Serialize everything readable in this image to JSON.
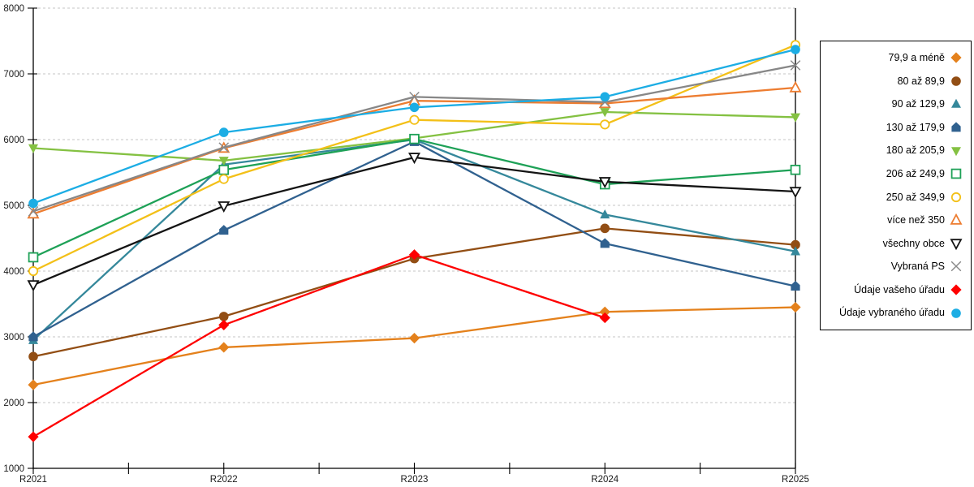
{
  "chart_data": {
    "type": "line",
    "title": "",
    "xlabel": "",
    "ylabel": "",
    "categories": [
      "R2021",
      "R2022",
      "R2023",
      "R2024",
      "R2025"
    ],
    "y_ticks": [
      "1000",
      "2000",
      "3000",
      "4000",
      "5000",
      "6000",
      "7000",
      "8000"
    ],
    "ylim": [
      1000,
      8000
    ],
    "grid": "horizontal-dashed",
    "legend_position": "right",
    "series": [
      {
        "name": "79,9 a méně",
        "color": "#E4811C",
        "marker": "diamond",
        "fill": "filled",
        "values": [
          2270,
          2840,
          2980,
          3380,
          3450
        ]
      },
      {
        "name": "80 až 89,9",
        "color": "#924E14",
        "marker": "circle",
        "fill": "filled",
        "values": [
          2700,
          3310,
          4190,
          4650,
          4400
        ]
      },
      {
        "name": "90 až 129,9",
        "color": "#35889B",
        "marker": "triangle-up",
        "fill": "filled",
        "values": [
          2950,
          5620,
          6000,
          4860,
          4300
        ]
      },
      {
        "name": "130 až 179,9",
        "color": "#30618F",
        "marker": "pentagon",
        "fill": "filled",
        "values": [
          3000,
          4620,
          5970,
          4420,
          3770
        ]
      },
      {
        "name": "180 až 205,9",
        "color": "#84C142",
        "marker": "triangle-down",
        "fill": "filled",
        "values": [
          5870,
          5680,
          6020,
          6420,
          6340
        ]
      },
      {
        "name": "206 až 249,9",
        "color": "#1EA157",
        "marker": "square",
        "fill": "open",
        "values": [
          4210,
          5540,
          6010,
          5320,
          5540
        ]
      },
      {
        "name": "250 až 349,9",
        "color": "#F3C018",
        "marker": "circle",
        "fill": "open",
        "values": [
          4000,
          5400,
          6300,
          6230,
          7440
        ]
      },
      {
        "name": "více než 350",
        "color": "#ED7D31",
        "marker": "triangle-up",
        "fill": "open",
        "values": [
          4870,
          5870,
          6590,
          6550,
          6790
        ]
      },
      {
        "name": "všechny obce",
        "color": "#141414",
        "marker": "triangle-down",
        "fill": "open",
        "values": [
          3790,
          4990,
          5730,
          5360,
          5210
        ]
      },
      {
        "name": "Vybraná PS",
        "color": "#878787",
        "marker": "x",
        "fill": "open",
        "values": [
          4910,
          5880,
          6650,
          6570,
          7130
        ]
      },
      {
        "name": "Údaje vašeho úřadu",
        "color": "#FE0000",
        "marker": "diamond",
        "fill": "filled",
        "values": [
          1480,
          3180,
          4250,
          3290,
          null
        ]
      },
      {
        "name": "Údaje vybraného úřadu",
        "color": "#1CADE4",
        "marker": "circle",
        "fill": "filled",
        "values": [
          5030,
          6110,
          6490,
          6650,
          7370
        ]
      }
    ]
  }
}
